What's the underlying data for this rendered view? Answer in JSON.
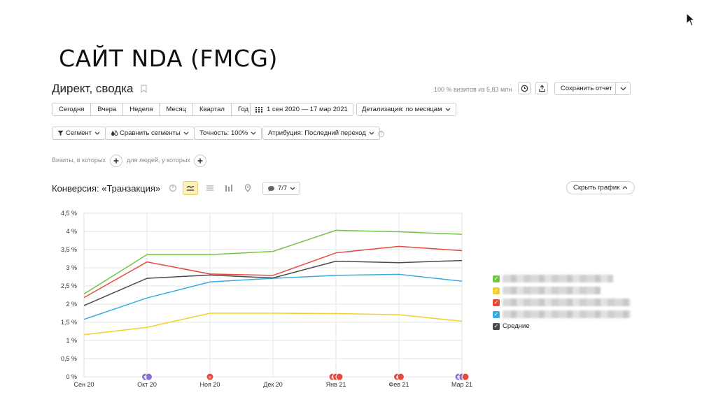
{
  "slide_title": "САЙТ NDA (FMCG)",
  "report": {
    "title": "Директ, сводка",
    "visits_note": "100 % визитов из 5,83 млн",
    "save_label": "Сохранить отчет"
  },
  "periods": [
    "Сегодня",
    "Вчера",
    "Неделя",
    "Месяц",
    "Квартал",
    "Год"
  ],
  "date_range": "1 сен 2020 — 17 мар 2021",
  "detail": "Детализация: по месяцам",
  "toolbar": {
    "segment": "Сегмент",
    "compare": "Сравнить сегменты",
    "accuracy": "Точность: 100%",
    "attribution": "Атрибуция: Последний переход"
  },
  "filters": {
    "visits_text": "Визиты, в которых",
    "people_text": "для людей, у которых"
  },
  "chart_header": {
    "title": "Конверсия: «Транзакция»",
    "goals": "7/7",
    "hide_chart": "Скрыть график"
  },
  "colors": {
    "green": "#76c447",
    "red": "#e8493a",
    "dark": "#4a4a4a",
    "blue": "#3aabe0",
    "yellow": "#f2cf2c",
    "purple": "#8a6fd1"
  },
  "legend_label_average": "Средние",
  "chart_data": {
    "type": "line",
    "title": "",
    "xlabel": "",
    "ylabel": "",
    "categories": [
      "Сен 20",
      "Окт 20",
      "Ноя 20",
      "Дек 20",
      "Янв 21",
      "Фев 21",
      "Мар 21"
    ],
    "y_ticks": [
      "0 %",
      "0,5 %",
      "1 %",
      "1,5 %",
      "2 %",
      "2,5 %",
      "3 %",
      "3,5 %",
      "4 %",
      "4,5 %"
    ],
    "ylim": [
      0,
      4.5
    ],
    "grid": true,
    "legend": "right",
    "series": [
      {
        "color": "#76c447",
        "values": [
          2.28,
          3.36,
          3.36,
          3.45,
          4.03,
          3.99,
          3.92
        ]
      },
      {
        "color": "#f2cf2c",
        "values": [
          1.16,
          1.36,
          1.75,
          1.75,
          1.74,
          1.71,
          1.53
        ]
      },
      {
        "color": "#e8493a",
        "values": [
          2.18,
          3.16,
          2.83,
          2.79,
          3.41,
          3.59,
          3.47
        ]
      },
      {
        "color": "#3aabe0",
        "values": [
          1.58,
          2.17,
          2.61,
          2.71,
          2.79,
          2.82,
          2.63
        ]
      },
      {
        "name": "Средние",
        "color": "#4a4a4a",
        "values": [
          1.96,
          2.71,
          2.8,
          2.72,
          3.18,
          3.14,
          3.2
        ]
      }
    ],
    "annotations": [
      {
        "x": "Окт 20",
        "markers": [
          "#8a6fd1",
          "#8a6fd1"
        ],
        "labels": [
          "м",
          "м"
        ]
      },
      {
        "x": "Ноя 20",
        "markers": [
          "#e8493a"
        ],
        "labels": [
          "н"
        ]
      },
      {
        "x": "Янв 21",
        "markers": [
          "#e8493a",
          "#e8493a",
          "#e8493a"
        ],
        "labels": [
          "н",
          "н",
          "н"
        ]
      },
      {
        "x": "Фев 21",
        "markers": [
          "#e8493a",
          "#e8493a"
        ],
        "labels": [
          "н",
          "н"
        ]
      },
      {
        "x": "Мар 21",
        "markers": [
          "#8a6fd1",
          "#8a6fd1",
          "#e8493a"
        ],
        "labels": [
          "м",
          "м",
          "н"
        ]
      }
    ]
  }
}
